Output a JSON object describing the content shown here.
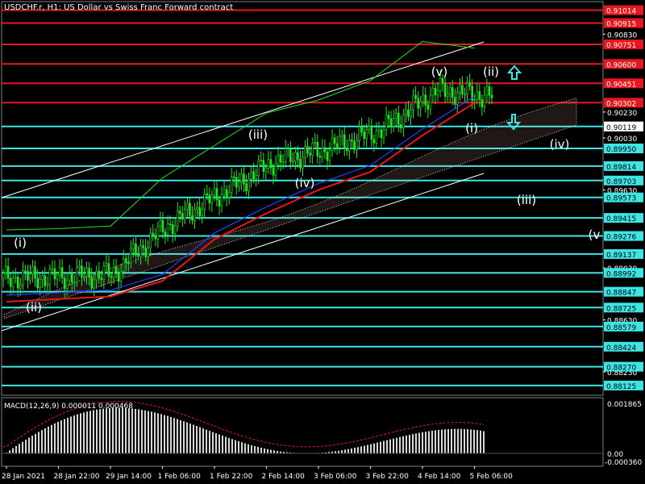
{
  "header": {
    "title": "USDCHF.r, H1: US Dollar vs Swiss Franc Forward contract"
  },
  "macd": {
    "label": "MACD(12,26,9) 0.000011 0.000468",
    "axis_labels": [
      "0.001865",
      "0.00",
      "-0.000360"
    ]
  },
  "x_axis_labels": [
    "28 Jan 2021",
    "28 Jan 22:00",
    "29 Jan 14:00",
    "1 Feb 06:00",
    "1 Feb 22:00",
    "2 Feb 14:00",
    "3 Feb 06:00",
    "3 Feb 22:00",
    "4 Feb 14:00",
    "5 Feb 06:00"
  ],
  "y_axis_labels": [
    "0.90830",
    "0.90230",
    "0.90030",
    "0.89630",
    "0.89030",
    "0.88630",
    "0.88230"
  ],
  "price_levels": {
    "resistance": [
      "0.91014",
      "0.90915",
      "0.90751",
      "0.90600",
      "0.90451",
      "0.90302"
    ],
    "support": [
      "0.90119",
      "0.89950",
      "0.89814",
      "0.89703",
      "0.89573",
      "0.89415",
      "0.89276",
      "0.89137",
      "0.88992",
      "0.88847",
      "0.88725",
      "0.88579",
      "0.88424",
      "0.88270",
      "0.88125"
    ]
  },
  "current_price": "0.90119",
  "wave_labels": [
    "(i)",
    "(ii)",
    "(iii)",
    "(iv)",
    "(v)",
    "(ii)",
    "(i)",
    "(iv)",
    "(iii)",
    "(v"
  ],
  "colors": {
    "resistance": "#e8171d",
    "support": "#3ee5e5",
    "candle": "#1fe61f",
    "ma_red": "#e8171d",
    "ma_blue": "#2740ff",
    "channel": "#ffffff",
    "arrow": "#3ee5e5"
  },
  "chart_data": {
    "type": "line",
    "title": "USDCHF.r, H1: US Dollar vs Swiss Franc Forward contract",
    "xlabel": "",
    "ylabel": "",
    "categories": [
      "28 Jan 2021",
      "28 Jan 22:00",
      "29 Jan 14:00",
      "1 Feb 06:00",
      "1 Feb 22:00",
      "2 Feb 14:00",
      "3 Feb 06:00",
      "3 Feb 22:00",
      "4 Feb 14:00",
      "5 Feb 06:00"
    ],
    "ylim": [
      0.8805,
      0.9108
    ],
    "series": [
      {
        "values": [
          0.8895,
          0.8896,
          0.8898,
          0.8935,
          0.896,
          0.8985,
          0.8995,
          0.901,
          0.904,
          0.9035
        ]
      },
      {
        "values": [
          0.8882,
          0.8884,
          0.8886,
          0.8898,
          0.893,
          0.895,
          0.8968,
          0.8982,
          0.901,
          0.9035
        ]
      }
    ]
  }
}
